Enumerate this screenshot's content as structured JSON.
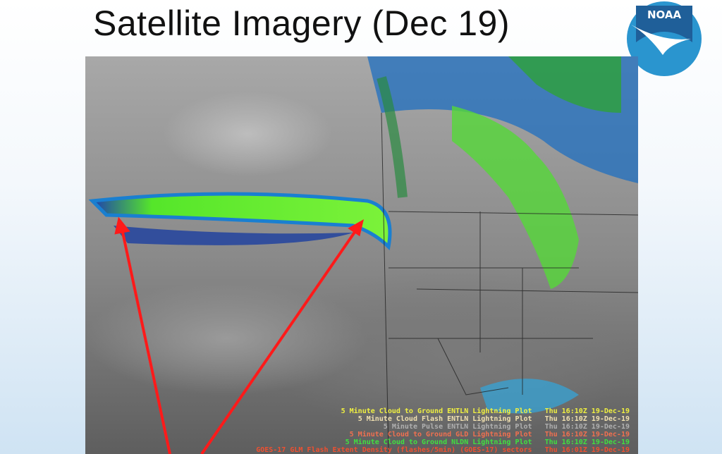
{
  "title": "Satellite Imagery (Dec 19)",
  "logo_text": "NOAA",
  "legend": [
    {
      "text": "5 Minute Cloud to Ground ENTLN Lightning Plot   Thu 16:10Z 19-Dec-19",
      "color": "#f0f040"
    },
    {
      "text": "5 Minute Cloud Flash ENTLN Lightning Plot   Thu 16:10Z 19-Dec-19",
      "color": "#f0e0b0"
    },
    {
      "text": "5 Minute Pulse ENTLN Lightning Plot   Thu 16:10Z 19-Dec-19",
      "color": "#b0b0b0"
    },
    {
      "text": "5 Minute Cloud to Ground GLD Lightning Plot   Thu 16:10Z 19-Dec-19",
      "color": "#f07050"
    },
    {
      "text": "5 Minute Cloud to Ground NLDN Lightning Plot   Thu 16:10Z 19-Dec-19",
      "color": "#40e040"
    },
    {
      "text": "GOES-17 GLM Flash Extent Density (flashes/5min) (GOES-17) sectors   Thu 16:01Z 19-Dec-19",
      "color": "#f05030"
    }
  ],
  "colors": {
    "arrow": "#ff1a1a",
    "plume": "#66ff33",
    "logo_dark": "#1f5f99",
    "logo_light": "#2a95cf"
  }
}
